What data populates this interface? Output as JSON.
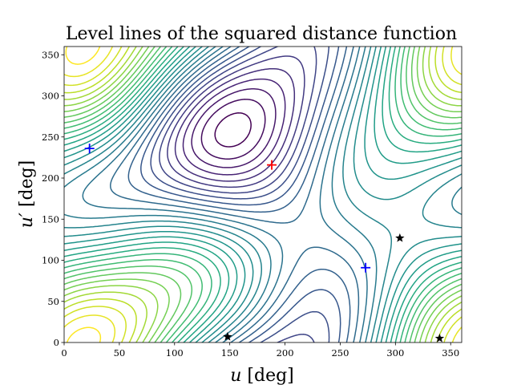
{
  "chart_data": {
    "type": "contour",
    "title": "Level lines of the squared distance function",
    "xlabel": {
      "var": "u",
      "unit": " [deg]"
    },
    "ylabel": {
      "var": "u′",
      "unit": " [deg]"
    },
    "xlim": [
      0,
      360
    ],
    "ylim": [
      0,
      360
    ],
    "xticks": [
      0,
      50,
      100,
      150,
      200,
      250,
      300,
      350
    ],
    "yticks": [
      0,
      50,
      100,
      150,
      200,
      250,
      300,
      350
    ],
    "colormap": "viridis",
    "n_levels": 30,
    "grid": false,
    "markers": [
      {
        "kind": "maximum",
        "symbol": "plus",
        "color": "#ff0000",
        "x": 188,
        "y": 216
      },
      {
        "kind": "minimum",
        "symbol": "plus",
        "color": "#0000ff",
        "x": 23,
        "y": 236
      },
      {
        "kind": "minimum",
        "symbol": "plus",
        "color": "#0000ff",
        "x": 273,
        "y": 91
      },
      {
        "kind": "saddle",
        "symbol": "star",
        "color": "#000000",
        "x": 148,
        "y": 7
      },
      {
        "kind": "saddle",
        "symbol": "star",
        "color": "#000000",
        "x": 304,
        "y": 127
      },
      {
        "kind": "saddle",
        "symbol": "star",
        "color": "#000000",
        "x": 340,
        "y": 5
      }
    ]
  }
}
